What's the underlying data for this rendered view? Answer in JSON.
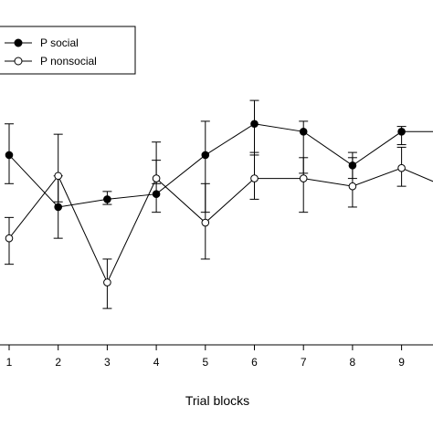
{
  "chart_data": {
    "type": "line",
    "xlabel": "Trial blocks",
    "x": [
      1,
      2,
      3,
      4,
      5,
      6,
      7,
      8,
      9,
      10
    ],
    "x_tick_labels": [
      "1",
      "2",
      "3",
      "4",
      "5",
      "6",
      "7",
      "8",
      "9"
    ],
    "ylim": [
      0,
      1
    ],
    "y_axis_visible": false,
    "grid": false,
    "legend_position": "top-left",
    "series": [
      {
        "name": "P social",
        "marker": "filled-circle",
        "color": "#000000",
        "values": [
          0.73,
          0.53,
          0.56,
          0.58,
          0.73,
          0.85,
          0.82,
          0.69,
          0.82,
          0.82
        ],
        "error_low": [
          0.62,
          0.41,
          0.54,
          0.51,
          0.51,
          0.73,
          0.66,
          0.64,
          0.77,
          null
        ],
        "error_high": [
          0.85,
          0.65,
          0.59,
          0.78,
          0.86,
          0.94,
          0.86,
          0.74,
          0.84,
          null
        ]
      },
      {
        "name": "P nonsocial",
        "marker": "open-circle",
        "color": "#000000",
        "values": [
          0.41,
          0.65,
          0.24,
          0.64,
          0.47,
          0.64,
          0.64,
          0.61,
          0.68,
          0.6
        ],
        "error_low": [
          0.31,
          0.55,
          0.14,
          0.62,
          0.33,
          0.56,
          0.51,
          0.53,
          0.61,
          null
        ],
        "error_high": [
          0.49,
          0.81,
          0.33,
          0.71,
          0.62,
          0.74,
          0.72,
          0.72,
          0.76,
          null
        ]
      }
    ]
  }
}
